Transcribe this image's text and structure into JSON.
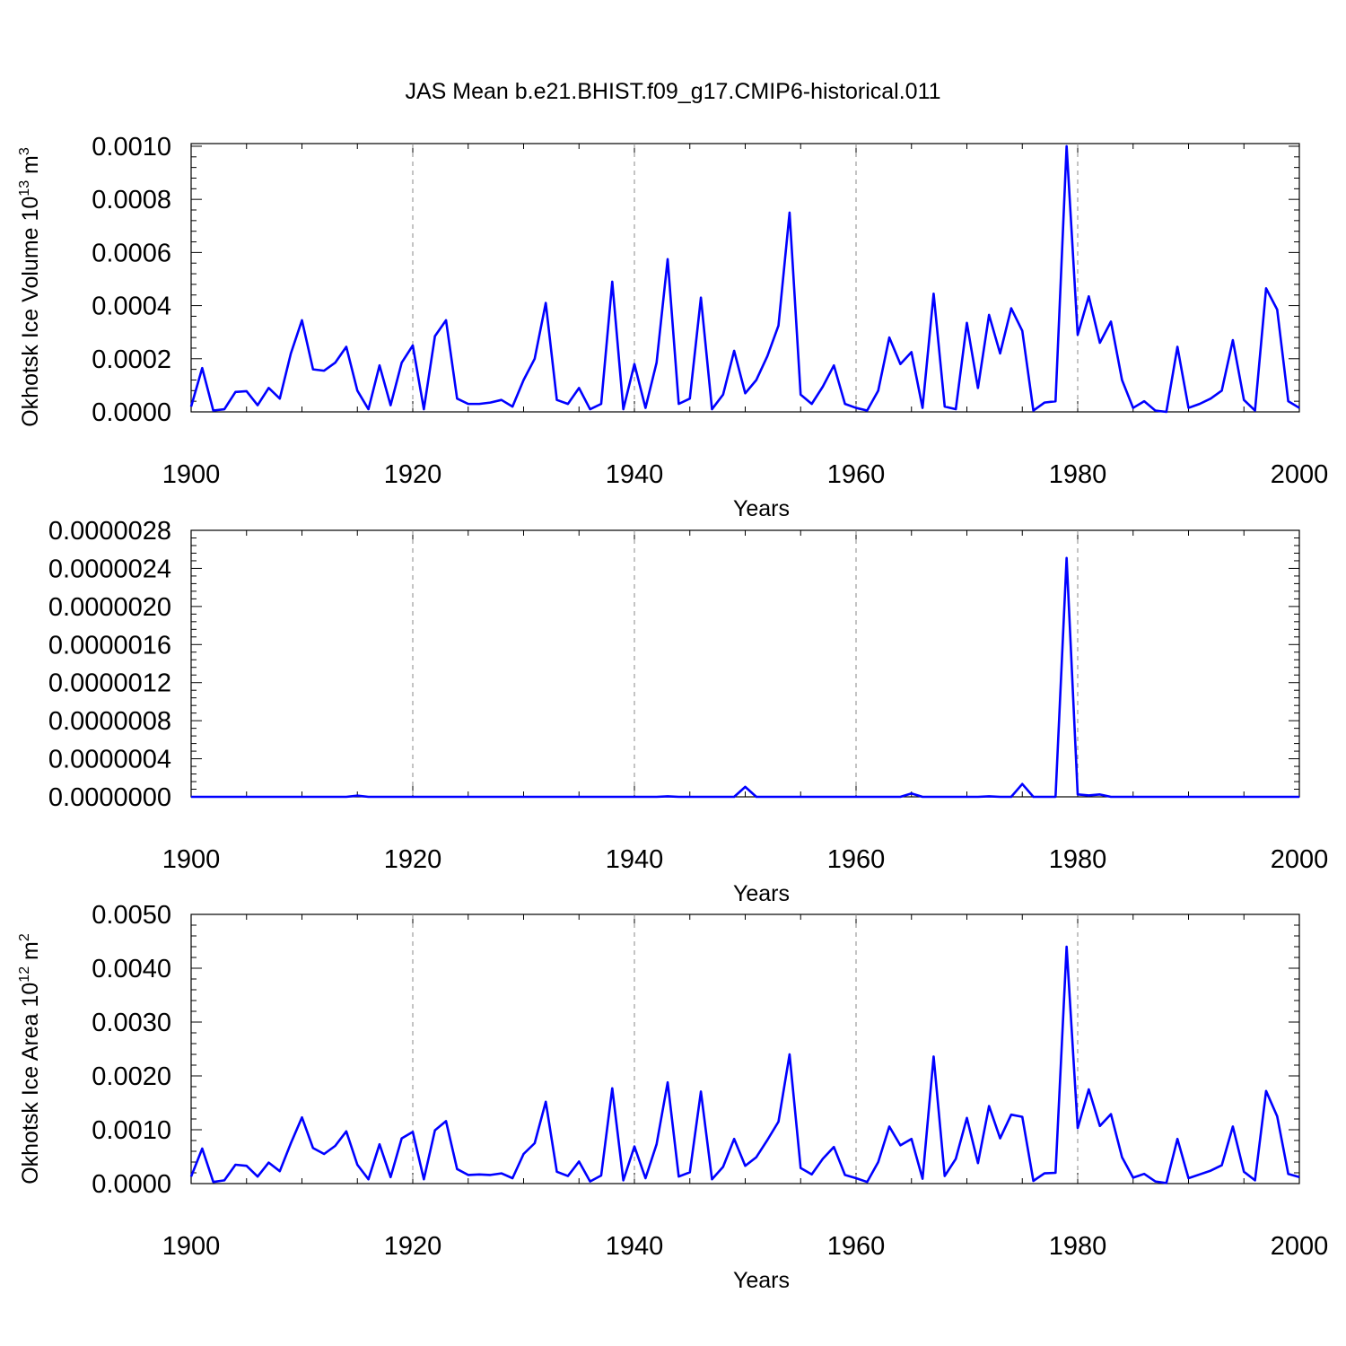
{
  "title": "JAS Mean b.e21.BHIST.f09_g17.CMIP6-historical.011",
  "colors": {
    "series": "#0000ff",
    "refline": "#888888"
  },
  "chart_data": [
    {
      "type": "line",
      "ylabel_main": "Okhotsk Ice Volume 10",
      "ylabel_sup1": "13",
      "ylabel_mid": " m",
      "ylabel_sup2": "3",
      "xlabel": "Years",
      "xlim": [
        1900,
        2000
      ],
      "xticks": [
        "1900",
        "1920",
        "1940",
        "1960",
        "1980",
        "2000"
      ],
      "ylim": [
        0,
        0.00101
      ],
      "yticks": [
        {
          "value": 0,
          "label": "0.0000"
        },
        {
          "value": 0.0002,
          "label": "0.0002"
        },
        {
          "value": 0.0004,
          "label": "0.0004"
        },
        {
          "value": 0.0006,
          "label": "0.0006"
        },
        {
          "value": 0.0008,
          "label": "0.0008"
        },
        {
          "value": 0.001,
          "label": "0.0010"
        }
      ],
      "reflines_x": [
        1920,
        1940,
        1960,
        1980
      ],
      "grid": false,
      "series": [
        {
          "x_start": 1900,
          "values": [
            2e-05,
            0.000165,
            5e-06,
            1e-05,
            7.5e-05,
            7.8e-05,
            2.5e-05,
            9e-05,
            5e-05,
            0.00022,
            0.000345,
            0.00016,
            0.000155,
            0.000185,
            0.000245,
            8e-05,
            1e-05,
            0.000175,
            2.5e-05,
            0.000185,
            0.00025,
            1e-05,
            0.000285,
            0.000345,
            5e-05,
            3e-05,
            3e-05,
            3.5e-05,
            4.5e-05,
            2e-05,
            0.00012,
            0.0002,
            0.00041,
            4.5e-05,
            3e-05,
            9e-05,
            1e-05,
            3e-05,
            0.00049,
            1e-05,
            0.00018,
            1.5e-05,
            0.000185,
            0.000575,
            3e-05,
            5e-05,
            0.00043,
            1e-05,
            6.5e-05,
            0.00023,
            7e-05,
            0.00012,
            0.00021,
            0.000325,
            0.00075,
            6.5e-05,
            3e-05,
            9.5e-05,
            0.000175,
            3e-05,
            1.5e-05,
            5e-06,
            8e-05,
            0.00028,
            0.00018,
            0.000225,
            1.5e-05,
            0.000445,
            2e-05,
            1e-05,
            0.000335,
            9e-05,
            0.000365,
            0.00022,
            0.00039,
            0.000305,
            5e-06,
            3.5e-05,
            4e-05,
            0.001,
            0.00029,
            0.000435,
            0.00026,
            0.00034,
            0.00012,
            1.5e-05,
            4e-05,
            5e-06,
            0.0,
            0.000245,
            1.5e-05,
            3e-05,
            5e-05,
            8e-05,
            0.00027,
            4.5e-05,
            5e-06,
            0.000465,
            0.000385,
            4e-05,
            1.5e-05
          ]
        }
      ]
    },
    {
      "type": "line",
      "ylabel_main": "",
      "xlabel": "Years",
      "xlim": [
        1900,
        2000
      ],
      "xticks": [
        "1900",
        "1920",
        "1940",
        "1960",
        "1980",
        "2000"
      ],
      "ylim": [
        0,
        2.8e-06
      ],
      "yticks": [
        {
          "value": 0,
          "label": "0.0000000"
        },
        {
          "value": 4e-07,
          "label": "0.0000004"
        },
        {
          "value": 8e-07,
          "label": "0.0000008"
        },
        {
          "value": 1.2e-06,
          "label": "0.0000012"
        },
        {
          "value": 1.6e-06,
          "label": "0.0000016"
        },
        {
          "value": 2e-06,
          "label": "0.0000020"
        },
        {
          "value": 2.4e-06,
          "label": "0.0000024"
        },
        {
          "value": 2.8e-06,
          "label": "0.0000028"
        }
      ],
      "reflines_x": [
        1920,
        1940,
        1960,
        1980
      ],
      "grid": false,
      "series": [
        {
          "x_start": 1900,
          "values": [
            0,
            0,
            0,
            0,
            0,
            0,
            0,
            0,
            0,
            0,
            0,
            0,
            0,
            0,
            0,
            1.2e-08,
            0,
            0,
            0,
            0,
            0,
            0,
            0,
            0,
            0,
            0,
            0,
            0,
            0,
            0,
            0,
            0,
            0,
            0,
            0,
            0,
            0,
            0,
            0,
            0,
            0,
            0,
            0,
            5e-09,
            0,
            0,
            0,
            0,
            0,
            0,
            1.05e-07,
            0,
            0,
            0,
            0,
            0,
            0,
            0,
            0,
            0,
            0,
            0,
            0,
            0,
            0,
            3.5e-08,
            0,
            0,
            0,
            0,
            0,
            0,
            5e-09,
            0,
            0,
            1.35e-07,
            0,
            0,
            0,
            2.51e-06,
            2.5e-08,
            1.5e-08,
            2.5e-08,
            0,
            0,
            0,
            0,
            0,
            0,
            0,
            0,
            0,
            0,
            0,
            0,
            0,
            0,
            0,
            0,
            0,
            0
          ]
        }
      ]
    },
    {
      "type": "line",
      "ylabel_main": "Okhotsk Ice Area 10",
      "ylabel_sup1": "12",
      "ylabel_mid": " m",
      "ylabel_sup2": "2",
      "xlabel": "Years",
      "xlim": [
        1900,
        2000
      ],
      "xticks": [
        "1900",
        "1920",
        "1940",
        "1960",
        "1980",
        "2000"
      ],
      "ylim": [
        0,
        0.005
      ],
      "yticks": [
        {
          "value": 0,
          "label": "0.0000"
        },
        {
          "value": 0.001,
          "label": "0.0010"
        },
        {
          "value": 0.002,
          "label": "0.0020"
        },
        {
          "value": 0.003,
          "label": "0.0030"
        },
        {
          "value": 0.004,
          "label": "0.0040"
        },
        {
          "value": 0.005,
          "label": "0.0050"
        }
      ],
      "reflines_x": [
        1920,
        1940,
        1960,
        1980
      ],
      "grid": false,
      "series": [
        {
          "x_start": 1900,
          "values": [
            0.00013,
            0.00065,
            3e-05,
            6e-05,
            0.00035,
            0.00033,
            0.00013,
            0.00039,
            0.00023,
            0.00075,
            0.00123,
            0.00066,
            0.00055,
            0.0007,
            0.00097,
            0.00035,
            8e-05,
            0.00073,
            0.00012,
            0.00084,
            0.00096,
            8e-05,
            0.00099,
            0.00116,
            0.00027,
            0.00016,
            0.00017,
            0.00016,
            0.00019,
            0.0001,
            0.00055,
            0.00075,
            0.00152,
            0.00022,
            0.00014,
            0.00041,
            4e-05,
            0.00015,
            0.00177,
            6e-05,
            0.00069,
            0.0001,
            0.00073,
            0.00188,
            0.00013,
            0.00021,
            0.00171,
            8e-05,
            0.00031,
            0.00083,
            0.00033,
            0.00049,
            0.00081,
            0.00115,
            0.0024,
            0.00029,
            0.00017,
            0.00046,
            0.00068,
            0.00016,
            0.0001,
            3e-05,
            0.0004,
            0.00106,
            0.00071,
            0.00083,
            9e-05,
            0.00236,
            0.00014,
            0.00046,
            0.00122,
            0.00038,
            0.00144,
            0.00084,
            0.00128,
            0.00124,
            5e-05,
            0.00019,
            0.0002,
            0.0044,
            0.00103,
            0.00175,
            0.00107,
            0.00129,
            0.00049,
            0.00011,
            0.00018,
            4e-05,
            1e-05,
            0.00083,
            0.0001,
            0.00017,
            0.00024,
            0.00034,
            0.00106,
            0.00022,
            6e-05,
            0.00172,
            0.00125,
            0.00018,
            0.00012
          ]
        }
      ]
    }
  ]
}
